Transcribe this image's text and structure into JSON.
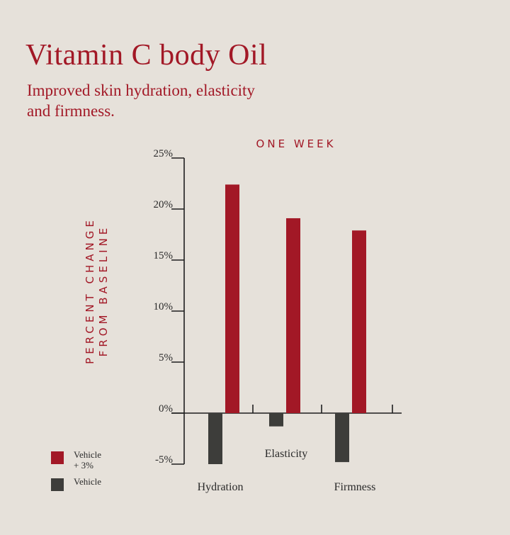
{
  "header": {
    "title": "Vitamin C body Oil",
    "subtitle": "Improved skin hydration, elasticity and firmness."
  },
  "colors": {
    "accent": "#a21826",
    "vehicle_3pct": "#a21826",
    "vehicle": "#3d3d3a",
    "axis": "#1e1e1e",
    "background": "#e6e1da"
  },
  "chart_data": {
    "type": "bar",
    "title": "ONE WEEK",
    "ylabel_lines": [
      "PERCENT CHANGE",
      "FROM BASELINE"
    ],
    "categories": [
      "Hydration",
      "Elasticity",
      "Firmness"
    ],
    "series": [
      {
        "name": "Vehicle\n+ 3%",
        "color": "#a21826",
        "values": [
          22.4,
          19.1,
          17.9
        ]
      },
      {
        "name": "Vehicle",
        "color": "#3d3d3a",
        "values": [
          -5.0,
          -1.3,
          -4.8
        ]
      }
    ],
    "yticks": [
      "25%",
      "20%",
      "15%",
      "10%",
      "5%",
      "0%",
      "-5%"
    ],
    "ylim": [
      -5,
      25
    ],
    "grid": false,
    "legend": "bottom-left"
  }
}
